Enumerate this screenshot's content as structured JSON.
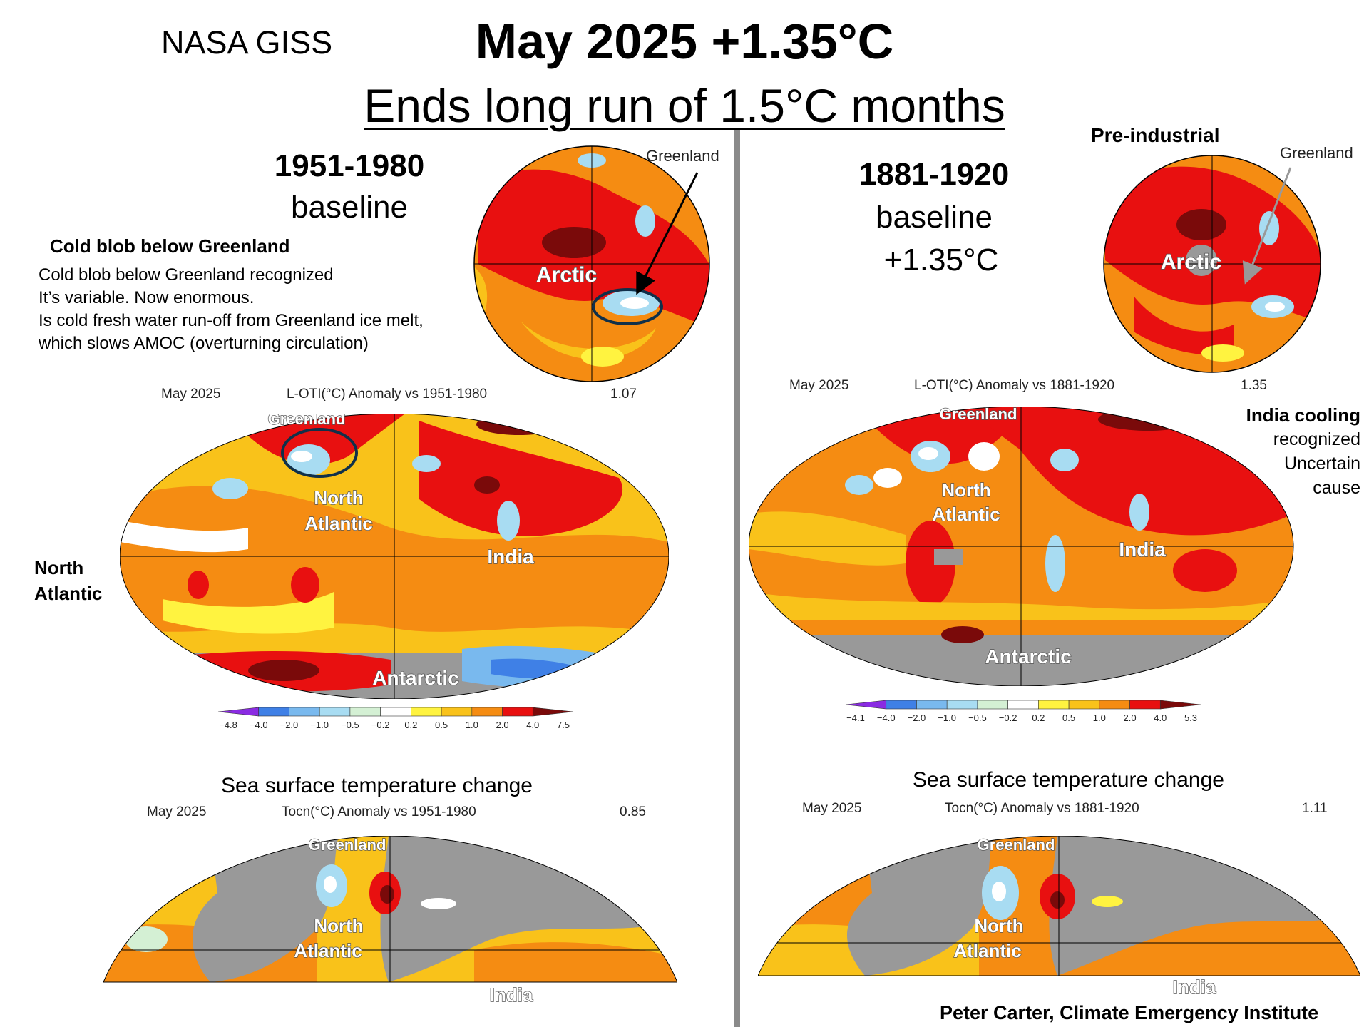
{
  "header": {
    "org": "NASA GISS",
    "title": "May 2025 +1.35°C",
    "subtitle": "Ends long run of 1.5°C months"
  },
  "left": {
    "baseline_years": "1951-1980",
    "baseline_word": "baseline",
    "globe_label_greenland": "Greenland",
    "globe_label_arctic": "Arctic",
    "note_heading": "Cold blob below Greenland",
    "note_lines": [
      "Cold blob below Greenland recognized",
      "It’s variable. Now enormous.",
      "Is cold fresh water run-off from Greenland ice melt,",
      "which slows AMOC (overturning circulation)"
    ],
    "side_label": [
      "North",
      "Atlantic"
    ],
    "map1": {
      "month": "May 2025",
      "desc": "L-OTI(°C) Anomaly vs 1951-1980",
      "value": "1.07",
      "labels": {
        "greenland": "Greenland",
        "north": "North",
        "atlantic": "Atlantic",
        "india": "India",
        "antarctic": "Antarctic"
      }
    },
    "colorbar_ticks": [
      "−4.8",
      "−4.0",
      "−2.0",
      "−1.0",
      "−0.5",
      "−0.2",
      "0.2",
      "0.5",
      "1.0",
      "2.0",
      "4.0",
      "7.5"
    ],
    "sst_title": "Sea surface temperature change",
    "map2": {
      "month": "May 2025",
      "desc": "Tocn(°C) Anomaly vs 1951-1980",
      "value": "0.85",
      "labels": {
        "greenland": "Greenland",
        "north": "North",
        "atlantic": "Atlantic",
        "india": "India"
      }
    }
  },
  "right": {
    "globe_title": "Pre-industrial",
    "baseline_years": "1881-1920",
    "baseline_word": "baseline",
    "baseline_value": "+1.35°C",
    "globe_label_greenland": "Greenland",
    "globe_label_arctic": "Arctic",
    "side_lines": [
      "India cooling",
      "recognized",
      "Uncertain",
      "cause"
    ],
    "map1": {
      "month": "May 2025",
      "desc": "L-OTI(°C) Anomaly vs 1881-1920",
      "value": "1.35",
      "labels": {
        "greenland": "Greenland",
        "north": "North",
        "atlantic": "Atlantic",
        "india": "India",
        "antarctic": "Antarctic"
      }
    },
    "colorbar_ticks": [
      "−4.1",
      "−4.0",
      "−2.0",
      "−1.0",
      "−0.5",
      "−0.2",
      "0.2",
      "0.5",
      "1.0",
      "2.0",
      "4.0",
      "5.3"
    ],
    "sst_title": "Sea surface temperature change",
    "map2": {
      "month": "May 2025",
      "desc": "Tocn(°C) Anomaly vs 1881-1920",
      "value": "1.11",
      "labels": {
        "greenland": "Greenland",
        "north": "North",
        "atlantic": "Atlantic",
        "india": "India"
      }
    }
  },
  "credit": "Peter Carter,  Climate Emergency Institute",
  "colors": {
    "scale": [
      "#8a2be2",
      "#3f80e6",
      "#79b9ee",
      "#a8dcf2",
      "#d4f0d4",
      "#ffffff",
      "#fff340",
      "#f9c21a",
      "#f58c12",
      "#e81010",
      "#7a0a0a"
    ],
    "land_gray": "#999999",
    "divider": "#8a8a8a"
  }
}
